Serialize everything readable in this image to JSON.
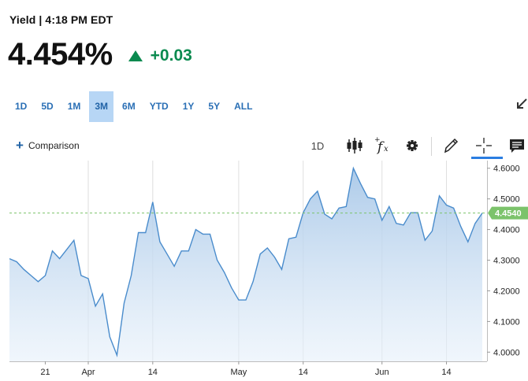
{
  "header": {
    "title": "Yield | 4:18 PM EDT",
    "value": "4.454%",
    "change": "+0.03",
    "change_color": "#0a8a4f"
  },
  "range_tabs": [
    {
      "label": "1D",
      "active": false
    },
    {
      "label": "5D",
      "active": false
    },
    {
      "label": "1M",
      "active": false
    },
    {
      "label": "3M",
      "active": true
    },
    {
      "label": "6M",
      "active": false
    },
    {
      "label": "YTD",
      "active": false
    },
    {
      "label": "1Y",
      "active": false
    },
    {
      "label": "5Y",
      "active": false
    },
    {
      "label": "ALL",
      "active": false
    }
  ],
  "toolbar": {
    "comparison_label": "Comparison",
    "interval_label": "1D",
    "icons": [
      "candlestick-icon",
      "function-icon",
      "gear-icon",
      "pencil-icon",
      "crosshair-icon",
      "comment-icon"
    ],
    "active_tool": "crosshair-icon"
  },
  "chart_data": {
    "type": "area",
    "line_color": "#4a8ccc",
    "fill_color": "#a9c8e8",
    "current_value": 4.454,
    "current_label": "4.4540",
    "current_line_color": "#7cc36b",
    "ylim": [
      3.97,
      4.625
    ],
    "y_ticks": [
      4.0,
      4.1,
      4.2,
      4.3,
      4.4,
      4.5,
      4.6
    ],
    "y_tick_labels": [
      "4.0000",
      "4.1000",
      "4.2000",
      "4.3000",
      "4.4000",
      "4.5000",
      "4.6000"
    ],
    "x_labels": [
      {
        "label": "21",
        "index": 5
      },
      {
        "label": "Apr",
        "index": 11
      },
      {
        "label": "14",
        "index": 20
      },
      {
        "label": "May",
        "index": 32
      },
      {
        "label": "14",
        "index": 41
      },
      {
        "label": "Jun",
        "index": 52
      },
      {
        "label": "14",
        "index": 61
      }
    ],
    "x_gridlines_at": [
      11,
      20,
      32,
      41,
      52,
      61
    ],
    "values": [
      4.305,
      4.295,
      4.27,
      4.25,
      4.23,
      4.25,
      4.33,
      4.305,
      4.335,
      4.365,
      4.25,
      4.24,
      4.15,
      4.19,
      4.05,
      3.99,
      4.16,
      4.25,
      4.39,
      4.39,
      4.49,
      4.36,
      4.32,
      4.28,
      4.33,
      4.33,
      4.4,
      4.385,
      4.385,
      4.3,
      4.26,
      4.21,
      4.17,
      4.17,
      4.23,
      4.32,
      4.34,
      4.31,
      4.27,
      4.37,
      4.375,
      4.455,
      4.5,
      4.525,
      4.45,
      4.435,
      4.47,
      4.475,
      4.6,
      4.55,
      4.505,
      4.5,
      4.43,
      4.475,
      4.42,
      4.415,
      4.455,
      4.455,
      4.365,
      4.395,
      4.51,
      4.48,
      4.47,
      4.41,
      4.36,
      4.42,
      4.454
    ]
  }
}
